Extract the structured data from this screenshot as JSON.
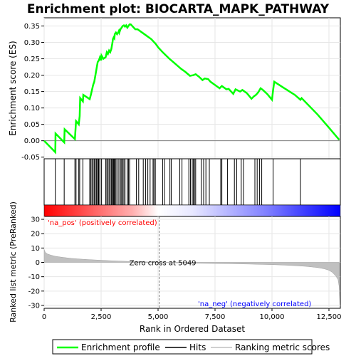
{
  "chart_data": {
    "type": "line",
    "title": "Enrichment plot: BIOCARTA_MAPK_PATHWAY",
    "xlabel": "Rank in Ordered Dataset",
    "x_ticks": [
      0,
      2500,
      5000,
      7500,
      10000,
      12500
    ],
    "x_tick_labels": [
      "0",
      "2,500",
      "5,000",
      "7,500",
      "10,000",
      "12,500"
    ],
    "xlim": [
      0,
      13000
    ],
    "es_panel": {
      "ylabel": "Enrichment score (ES)",
      "ylim": [
        -0.055,
        0.375
      ],
      "y_ticks": [
        -0.05,
        0.0,
        0.05,
        0.1,
        0.15,
        0.2,
        0.25,
        0.3,
        0.35
      ],
      "y_tick_labels": [
        "-0.05",
        "0.00",
        "0.05",
        "0.10",
        "0.15",
        "0.20",
        "0.25",
        "0.30",
        "0.35"
      ],
      "series": [
        {
          "name": "Enrichment profile",
          "color": "#00ff00",
          "x": [
            0,
            490,
            500,
            880,
            900,
            1350,
            1400,
            1520,
            1560,
            1580,
            1700,
            1720,
            2000,
            2050,
            2100,
            2150,
            2200,
            2250,
            2300,
            2350,
            2400,
            2450,
            2500,
            2520,
            2600,
            2700,
            2750,
            2800,
            2850,
            2900,
            2950,
            3000,
            3020,
            3050,
            3080,
            3100,
            3150,
            3200,
            3250,
            3280,
            3300,
            3350,
            3400,
            3450,
            3500,
            3550,
            3600,
            3650,
            3700,
            3750,
            3800,
            4000,
            4100,
            4300,
            4500,
            4700,
            4900,
            5000,
            5200,
            5500,
            5800,
            6000,
            6200,
            6400,
            6550,
            6650,
            6800,
            6950,
            7050,
            7200,
            7300,
            7500,
            7700,
            7800,
            8000,
            8100,
            8300,
            8400,
            8600,
            8700,
            8900,
            9100,
            9200,
            9300,
            9400,
            9500,
            9600,
            9800,
            10000,
            10050,
            10100,
            10500,
            11000,
            11250,
            11300,
            12000,
            12500,
            12950
          ],
          "y": [
            0.0,
            -0.035,
            0.022,
            -0.005,
            0.035,
            0.005,
            0.06,
            0.05,
            0.075,
            0.13,
            0.12,
            0.14,
            0.127,
            0.14,
            0.155,
            0.17,
            0.18,
            0.2,
            0.22,
            0.24,
            0.245,
            0.255,
            0.245,
            0.26,
            0.25,
            0.255,
            0.27,
            0.265,
            0.275,
            0.27,
            0.28,
            0.3,
            0.31,
            0.315,
            0.312,
            0.325,
            0.33,
            0.325,
            0.33,
            0.335,
            0.33,
            0.34,
            0.345,
            0.35,
            0.352,
            0.348,
            0.352,
            0.345,
            0.35,
            0.355,
            0.355,
            0.34,
            0.34,
            0.33,
            0.32,
            0.31,
            0.295,
            0.285,
            0.27,
            0.25,
            0.232,
            0.22,
            0.21,
            0.198,
            0.2,
            0.203,
            0.195,
            0.185,
            0.19,
            0.188,
            0.18,
            0.17,
            0.16,
            0.167,
            0.157,
            0.158,
            0.143,
            0.157,
            0.15,
            0.155,
            0.145,
            0.128,
            0.135,
            0.14,
            0.148,
            0.16,
            0.155,
            0.142,
            0.125,
            0.155,
            0.18,
            0.162,
            0.14,
            0.125,
            0.13,
            0.08,
            0.04,
            0.003
          ]
        }
      ]
    },
    "hits_panel": {
      "legend_label": "Hits",
      "hit_ranks": [
        490,
        880,
        1350,
        1400,
        1520,
        1560,
        1700,
        2000,
        2050,
        2100,
        2150,
        2200,
        2250,
        2300,
        2350,
        2380,
        2400,
        2450,
        2520,
        2700,
        2750,
        2800,
        2850,
        2900,
        2950,
        3000,
        3020,
        3050,
        3080,
        3100,
        3150,
        3200,
        3280,
        3350,
        3400,
        3450,
        3500,
        3550,
        3650,
        3700,
        3750,
        4050,
        4150,
        4350,
        4450,
        4550,
        4650,
        4780,
        4820,
        4880,
        5200,
        5280,
        5520,
        5580,
        5950,
        6050,
        6350,
        6420,
        6500,
        6550,
        6600,
        6650,
        6900,
        7000,
        7100,
        7250,
        7750,
        7800,
        8050,
        8350,
        8450,
        8650,
        8750,
        9250,
        9350,
        9450,
        9550,
        10050,
        11250
      ]
    },
    "metric_panel": {
      "ylabel": "Ranked list metric (PreRanked)",
      "legend_label": "Ranking metric scores",
      "ylim": [
        -32,
        32
      ],
      "y_ticks": [
        -30,
        -20,
        -10,
        0,
        10,
        20,
        30
      ],
      "y_tick_labels": [
        "-30",
        "-20",
        "-10",
        "0",
        "10",
        "20",
        "30"
      ],
      "zero_cross_label": "Zero cross at 5049",
      "zero_cross": 5049,
      "pos_label": "'na_pos' (positively correlated)",
      "neg_label": "'na_neg' (negatively correlated)",
      "x": [
        0,
        50,
        150,
        300,
        500,
        800,
        1200,
        1600,
        2000,
        2500,
        3000,
        3500,
        4000,
        4500,
        5049,
        5500,
        6000,
        7000,
        8000,
        9000,
        10000,
        10500,
        11000,
        11500,
        12000,
        12300,
        12500,
        12650,
        12800,
        12900,
        12950,
        12980
      ],
      "y": [
        9,
        7,
        5.8,
        5,
        4.2,
        3.5,
        2.8,
        2.3,
        1.9,
        1.5,
        1.1,
        0.8,
        0.5,
        0.3,
        0,
        -0.2,
        -0.4,
        -0.7,
        -0.9,
        -1.2,
        -1.6,
        -1.9,
        -2.3,
        -2.8,
        -3.6,
        -4.5,
        -5.5,
        -7,
        -9.5,
        -12,
        -17,
        -29
      ]
    },
    "legend": [
      {
        "label": "Enrichment profile",
        "color": "#00ff00"
      },
      {
        "label": "Hits",
        "color": "#000000"
      },
      {
        "label": "Ranking metric scores",
        "color": "#c0c0c0"
      }
    ],
    "colors": {
      "pos_text": "#ff0000",
      "neg_text": "#0000ff",
      "metric_fill": "#c0c0c0",
      "zero_line": "#808080"
    }
  }
}
